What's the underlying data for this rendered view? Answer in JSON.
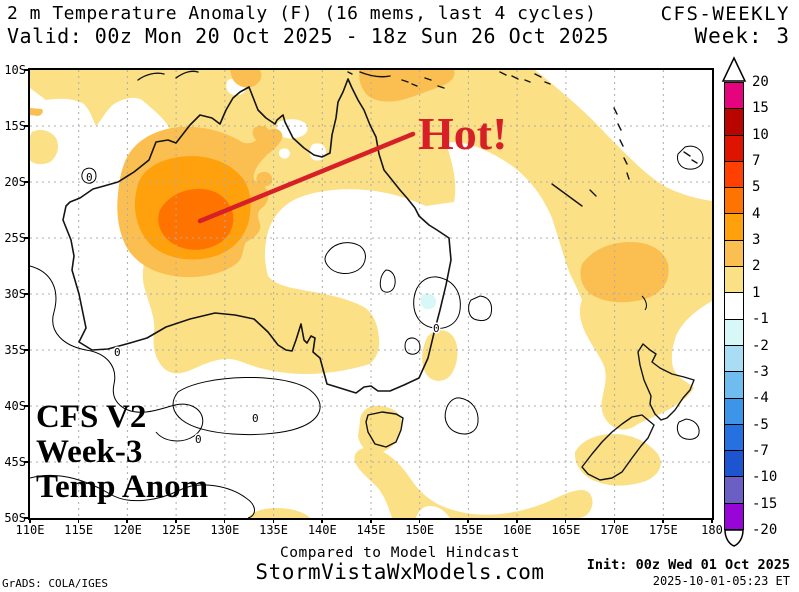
{
  "header": {
    "title_line": "2 m Temperature Anomaly (F) (16 mems, last 4 cycles)",
    "model_name": "CFS-WEEKLY",
    "valid_line": "Valid: 00z Mon 20 Oct 2025 - 18z Sun 26 Oct 2025",
    "week_label": "Week: 3"
  },
  "map": {
    "annotation_text": "Hot!",
    "model_label_lines": [
      "CFS V2",
      "Week-3",
      "Temp Anom"
    ],
    "zero_contour_label": "0",
    "lat_ticks": [
      "10S",
      "15S",
      "20S",
      "25S",
      "30S",
      "35S",
      "40S",
      "45S",
      "50S"
    ],
    "lon_ticks": [
      "110E",
      "115E",
      "120E",
      "125E",
      "130E",
      "135E",
      "140E",
      "145E",
      "150E",
      "155E",
      "160E",
      "165E",
      "170E",
      "175E",
      "180"
    ]
  },
  "colorbar": {
    "boundary_labels": [
      "20",
      "15",
      "10",
      "7",
      "5",
      "4",
      "3",
      "2",
      "1",
      "-1",
      "-2",
      "-3",
      "-4",
      "-5",
      "-7",
      "-10",
      "-15",
      "-20"
    ],
    "segment_colors_top_to_bottom": [
      "#E4057E",
      "#B80500",
      "#DE1400",
      "#FF4000",
      "#FF7300",
      "#FFA10D",
      "#FBBF51",
      "#FBE086",
      "#FFFFFF",
      "#D7F8F6",
      "#A9DDF6",
      "#6FBCEF",
      "#3D95EA",
      "#2671E0",
      "#1D54CF",
      "#6C5FC4",
      "#9706D6"
    ]
  },
  "footer": {
    "hindcast_note": "Compared to Model Hindcast",
    "site": "StormVistaWxModels.com",
    "init_line": "Init: 00z Wed 01 Oct 2025",
    "timestamp": "2025-10-01-05:23 ET",
    "grads_credit": "GrADS: COLA/IGES"
  },
  "colors": {
    "plus1": "#FBE086",
    "plus2": "#FBBF51",
    "plus3": "#FFA10D",
    "plus4": "#FF7300",
    "minus1": "#D7F8F6",
    "annotation_red": "#D71F27",
    "grid": "#ACACAC",
    "coast": "#141414"
  },
  "chart_data": {
    "type": "heatmap",
    "title": "2 m Temperature Anomaly (F) (16 mems, last 4 cycles)",
    "model": "CFS-WEEKLY, Week 3",
    "valid_period": "00z Mon 20 Oct 2025 - 18z Sun 26 Oct 2025",
    "init_time": "00z Wed 01 Oct 2025",
    "units": "F",
    "lon_range": [
      "110E",
      "180"
    ],
    "lat_range": [
      "10S",
      "50S"
    ],
    "grid_interval_deg": 5,
    "anomaly_levels": [
      -20,
      -15,
      -10,
      -7,
      -5,
      -4,
      -3,
      -2,
      -1,
      1,
      2,
      3,
      4,
      5,
      7,
      10,
      15,
      20
    ],
    "notable_features": [
      {
        "location": "Western Australia interior (~125E, 23S)",
        "anomaly_F": "+4 to +5 (peak)"
      },
      {
        "location": "Broad northern/western Australia and Coral Sea",
        "anomaly_F": "+1 to +3"
      },
      {
        "location": "Cape York Peninsula / Torres Strait (~146E, 11S)",
        "anomaly_F": "+2 to +3"
      },
      {
        "location": "Subtropical SW Pacific SE of New Caledonia (~168E, 27S)",
        "anomaly_F": "+2 to +3"
      },
      {
        "location": "Inland eastern Australia (~151E, 30S)",
        "anomaly_F": "-1 to -2 (small pocket)"
      },
      {
        "location": "Southeast Australia, Tasman Sea, New Zealand",
        "anomaly_F": "near 0 to +2"
      }
    ],
    "annotation": {
      "text": "Hot!",
      "points_to": "Western Australia warm core"
    }
  }
}
